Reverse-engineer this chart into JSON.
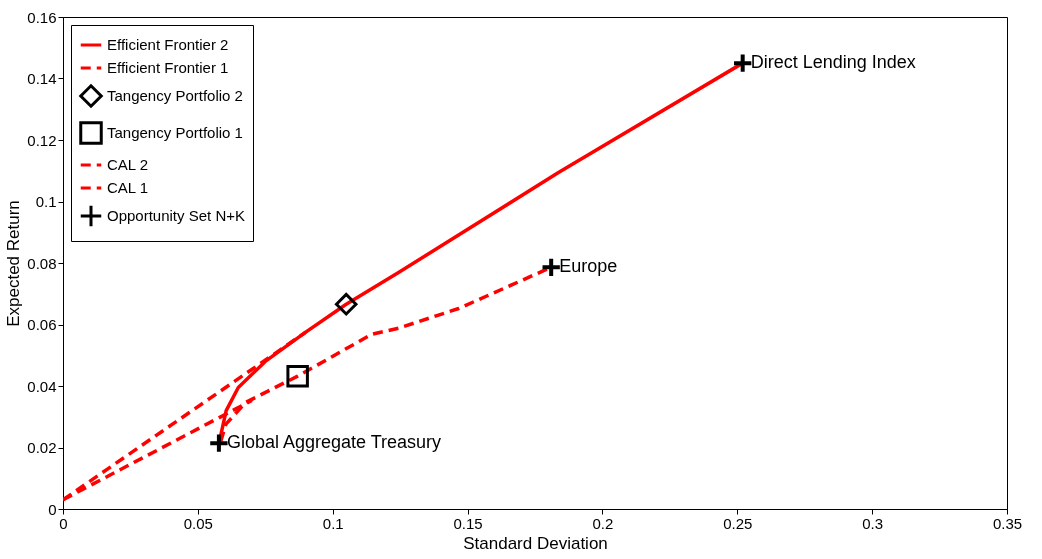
{
  "chart_data": {
    "type": "line",
    "xlabel": "Standard Deviation",
    "ylabel": "Expected Return",
    "xlim": [
      0,
      0.35
    ],
    "xticks": [
      0,
      0.05,
      0.1,
      0.15,
      0.2,
      0.25,
      0.3,
      0.35
    ],
    "ylim": [
      0,
      0.16
    ],
    "yticks": [
      0,
      0.02,
      0.04,
      0.06,
      0.08,
      0.1,
      0.12,
      0.14,
      0.16
    ],
    "grid": false,
    "legend": "top left",
    "series": [
      {
        "name": "Efficient Frontier 2",
        "line_style": "solid",
        "color": "#ff0000",
        "x": [
          0.0585,
          0.0605,
          0.065,
          0.075,
          0.09,
          0.105,
          0.1244,
          0.1837,
          0.252
        ],
        "values": [
          0.024,
          0.032,
          0.0395,
          0.048,
          0.0575,
          0.0666,
          0.0769,
          0.1094,
          0.145
        ]
      },
      {
        "name": "Efficient Frontier 1",
        "line_style": "dashed",
        "color": "#ff0000",
        "x": [
          0.0585,
          0.0604,
          0.0678,
          0.087,
          0.1144,
          0.1244,
          0.1467,
          0.181
        ],
        "values": [
          0.022,
          0.0276,
          0.0347,
          0.0432,
          0.0568,
          0.0588,
          0.0652,
          0.0786
        ]
      },
      {
        "name": "Tangency Portfolio 2",
        "type": "scatter",
        "marker": "diamond",
        "color": "#000000",
        "x": [
          0.105
        ],
        "values": [
          0.0666
        ]
      },
      {
        "name": "Tangency Portfolio 1",
        "type": "scatter",
        "marker": "square",
        "color": "#000000",
        "x": [
          0.087
        ],
        "values": [
          0.0432
        ]
      },
      {
        "name": "CAL 2",
        "line_style": "dashed",
        "color": "#ff0000",
        "x": [
          0,
          0.09
        ],
        "values": [
          0.003,
          0.0575
        ]
      },
      {
        "name": "CAL 1",
        "line_style": "dashed",
        "color": "#ff0000",
        "x": [
          0,
          0.07
        ],
        "values": [
          0.003,
          0.0353
        ]
      },
      {
        "name": "Opportunity Set N+K",
        "type": "scatter",
        "marker": "cross",
        "color": "#000000",
        "x": [
          0.0578,
          0.181,
          0.252
        ],
        "values": [
          0.0214,
          0.0786,
          0.145
        ]
      }
    ],
    "annotations": [
      {
        "text": "Global Aggregate Treasury",
        "x": 0.0578,
        "y": 0.0214
      },
      {
        "text": "Europe",
        "x": 0.181,
        "y": 0.0786
      },
      {
        "text": "Direct Lending Index",
        "x": 0.252,
        "y": 0.145
      }
    ]
  }
}
